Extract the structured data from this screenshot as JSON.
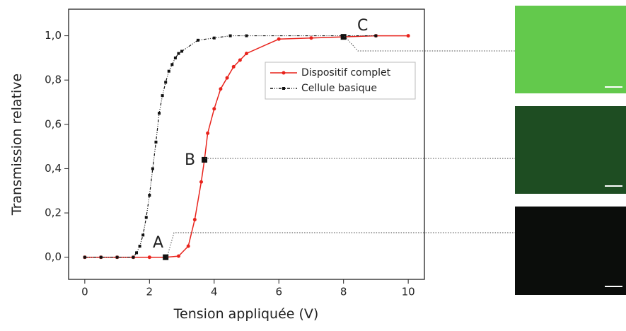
{
  "chart_data": {
    "type": "line",
    "xlabel": "Tension appliquée (V)",
    "ylabel": "Transmission relative",
    "xlim": [
      -0.5,
      10.5
    ],
    "ylim": [
      -0.1,
      1.12
    ],
    "xticks": [
      0,
      2,
      4,
      6,
      8,
      10
    ],
    "yticks": [
      {
        "value": 0,
        "label": "0,0"
      },
      {
        "value": 0.2,
        "label": "0,2"
      },
      {
        "value": 0.4,
        "label": "0,4"
      },
      {
        "value": 0.6,
        "label": "0,6"
      },
      {
        "value": 0.8,
        "label": "0,8"
      },
      {
        "value": 1.0,
        "label": "1,0"
      }
    ],
    "series": [
      {
        "name": "Dispositif complet",
        "color": "#e8231c",
        "x": [
          0,
          0.5,
          1,
          1.5,
          2,
          2.5,
          2.9,
          3.2,
          3.4,
          3.6,
          3.7,
          3.8,
          4.0,
          4.2,
          4.4,
          4.6,
          4.8,
          5.0,
          6,
          7,
          8,
          9,
          10
        ],
        "values": [
          0,
          0,
          0,
          0,
          0,
          0,
          0.005,
          0.05,
          0.17,
          0.34,
          0.44,
          0.56,
          0.67,
          0.76,
          0.81,
          0.86,
          0.89,
          0.92,
          0.985,
          0.99,
          0.995,
          1.0,
          1.0
        ]
      },
      {
        "name": "Cellule basique",
        "color": "#111111",
        "x": [
          0,
          0.5,
          1,
          1.5,
          1.6,
          1.7,
          1.8,
          1.9,
          2.0,
          2.1,
          2.2,
          2.3,
          2.4,
          2.5,
          2.6,
          2.7,
          2.8,
          2.9,
          3.0,
          3.5,
          4.0,
          4.5,
          5.0,
          8,
          9
        ],
        "values": [
          0,
          0,
          0,
          0,
          0.02,
          0.05,
          0.1,
          0.18,
          0.28,
          0.4,
          0.52,
          0.65,
          0.73,
          0.79,
          0.84,
          0.87,
          0.9,
          0.92,
          0.93,
          0.98,
          0.99,
          1.0,
          1.0,
          1.0,
          1.0
        ]
      }
    ],
    "annotations": [
      "A",
      "B",
      "C"
    ]
  }
}
